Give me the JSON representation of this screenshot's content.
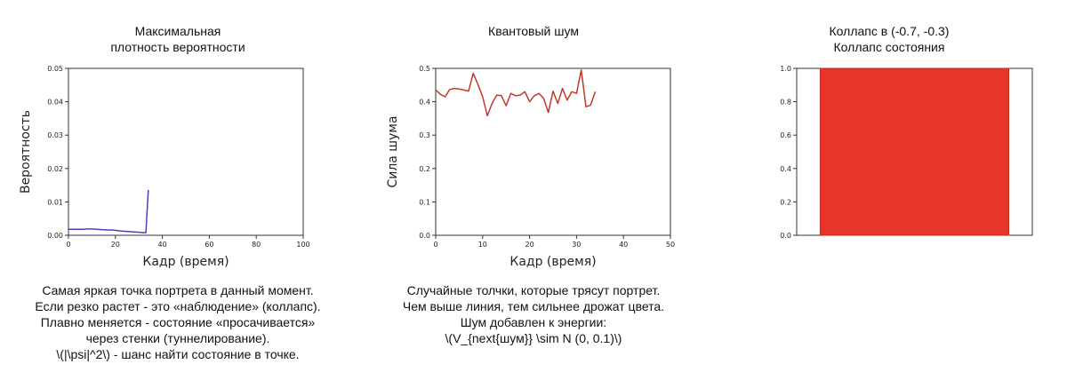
{
  "panels": [
    {
      "title_lines": [
        "Максимальная",
        "плотность вероятности"
      ],
      "caption_lines": [
        "Самая яркая точка портрета в данный момент.",
        "Если резко растет - это «наблюдение» (коллапс).",
        "Плавно меняется - состояние «просачивается»",
        "через стенки (туннелирование).",
        "\\(|\\psi|^2\\) - шанс найти состояние в точке."
      ]
    },
    {
      "title_lines": [
        "Квантовый шум"
      ],
      "caption_lines": [
        "Случайные толчки, которые трясут портрет.",
        "Чем выше линия, тем сильнее дрожат цвета.",
        "Шум добавлен к энергии:",
        "\\(V_{next{шум}} \\sim N (0, 0.1)\\)"
      ]
    },
    {
      "title_lines": [
        "Коллапс в (-0.7, -0.3)",
        "Коллапс состояния"
      ],
      "caption_lines": []
    }
  ],
  "chart_data": [
    {
      "type": "line",
      "xlabel": "Кадр (время)",
      "ylabel": "Вероятность",
      "xlim": [
        0,
        100
      ],
      "ylim": [
        0,
        0.05
      ],
      "x_ticks": [
        "0",
        "20",
        "40",
        "60",
        "80",
        "100"
      ],
      "y_ticks": [
        "0.00",
        "0.01",
        "0.02",
        "0.03",
        "0.04",
        "0.05"
      ],
      "color": "#4b3fbf",
      "x": [
        0,
        2,
        4,
        6,
        8,
        10,
        12,
        14,
        16,
        18,
        20,
        22,
        24,
        26,
        28,
        30,
        32,
        33,
        34
      ],
      "y": [
        0.0018,
        0.0018,
        0.0018,
        0.0018,
        0.0019,
        0.0019,
        0.0018,
        0.0017,
        0.0016,
        0.0016,
        0.0015,
        0.0013,
        0.0012,
        0.0011,
        0.001,
        0.0009,
        0.0008,
        0.0008,
        0.0136
      ]
    },
    {
      "type": "line",
      "xlabel": "Кадр (время)",
      "ylabel": "Сила шума",
      "xlim": [
        0,
        50
      ],
      "ylim": [
        0,
        0.5
      ],
      "x_ticks": [
        "0",
        "10",
        "20",
        "30",
        "40",
        "50"
      ],
      "y_ticks": [
        "0.0",
        "0.1",
        "0.2",
        "0.3",
        "0.4",
        "0.5"
      ],
      "color": "#c0392b",
      "x": [
        0,
        1,
        2,
        3,
        4,
        5,
        6,
        7,
        8,
        9,
        10,
        11,
        12,
        13,
        14,
        15,
        16,
        17,
        18,
        19,
        20,
        21,
        22,
        23,
        24,
        25,
        26,
        27,
        28,
        29,
        30,
        31,
        32,
        33,
        34
      ],
      "y": [
        0.436,
        0.422,
        0.415,
        0.437,
        0.44,
        0.438,
        0.435,
        0.432,
        0.485,
        0.452,
        0.415,
        0.358,
        0.395,
        0.42,
        0.418,
        0.388,
        0.425,
        0.418,
        0.42,
        0.43,
        0.4,
        0.418,
        0.425,
        0.41,
        0.368,
        0.432,
        0.395,
        0.44,
        0.405,
        0.43,
        0.425,
        0.495,
        0.385,
        0.39,
        0.43
      ]
    },
    {
      "type": "bar",
      "xlabel": "",
      "ylabel": "",
      "ylim": [
        0,
        1
      ],
      "y_ticks": [
        "0.0",
        "0.2",
        "0.4",
        "0.6",
        "0.8",
        "1.0"
      ],
      "color": "#e8352a",
      "values": [
        1.0
      ]
    }
  ]
}
